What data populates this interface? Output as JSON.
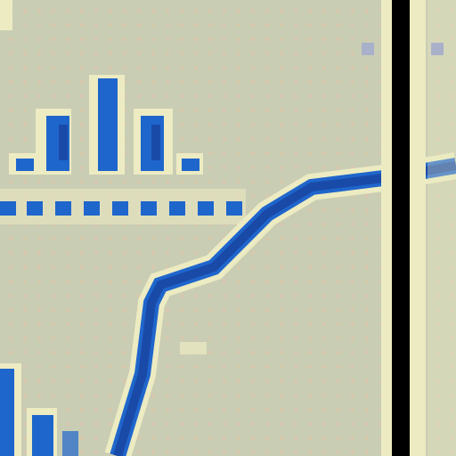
{
  "colors": {
    "background": "#c9cdb4",
    "dither": "#d6c7ad",
    "curve": "#1a4aa8",
    "highlight": "#ecebc2",
    "accent": "#1f66cc",
    "splitter": "#000000"
  },
  "icons": {
    "peak_glyph": "spectrum-peaks-icon",
    "dotted_baseline": "dotted-baseline",
    "curve": "waveform-curve",
    "splitter": "vertical-splitter"
  }
}
